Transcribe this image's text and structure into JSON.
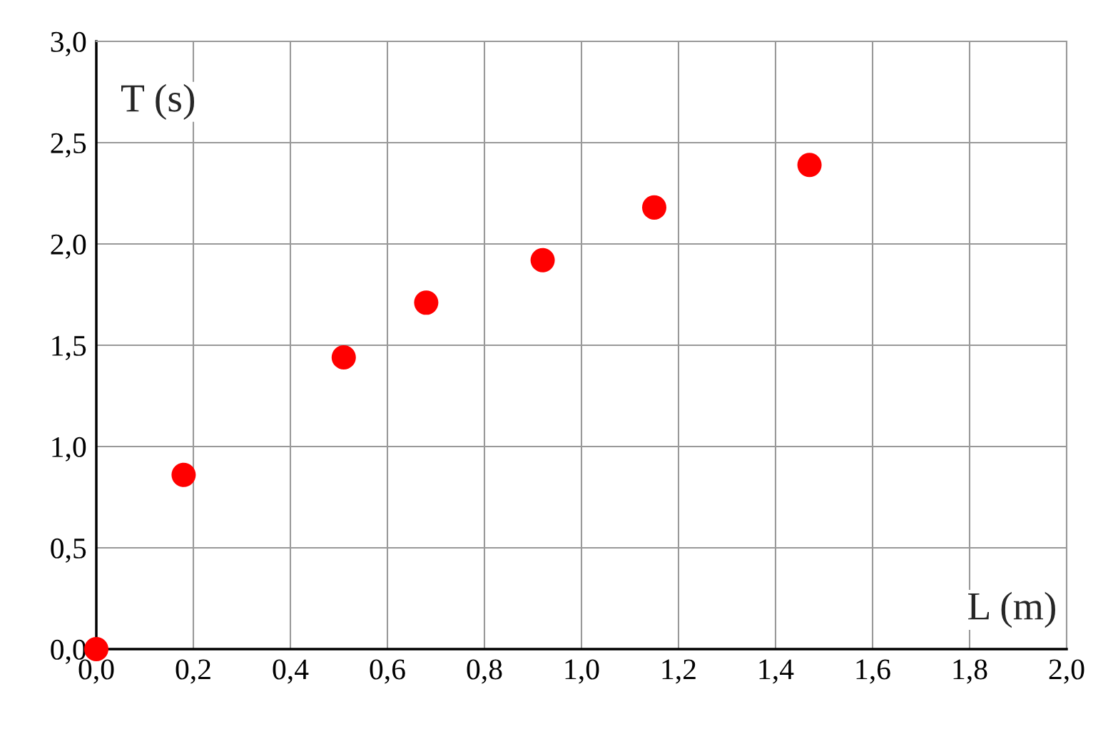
{
  "chart_data": {
    "type": "scatter",
    "xlabel": "L (m)",
    "ylabel": "T (s)",
    "x": [
      0.0,
      0.18,
      0.51,
      0.68,
      0.92,
      1.15,
      1.47
    ],
    "series": [
      {
        "color": "#ff0000",
        "values": [
          0.0,
          0.86,
          1.44,
          1.71,
          1.92,
          2.18,
          2.39
        ]
      }
    ],
    "xlim": [
      0.0,
      2.0
    ],
    "ylim": [
      0.0,
      3.0
    ],
    "xticks": [
      {
        "value": 0.0,
        "label": "0,0"
      },
      {
        "value": 0.2,
        "label": "0,2"
      },
      {
        "value": 0.4,
        "label": "0,4"
      },
      {
        "value": 0.6,
        "label": "0,6"
      },
      {
        "value": 0.8,
        "label": "0,8"
      },
      {
        "value": 1.0,
        "label": "1,0"
      },
      {
        "value": 1.2,
        "label": "1,2"
      },
      {
        "value": 1.4,
        "label": "1,4"
      },
      {
        "value": 1.6,
        "label": "1,6"
      },
      {
        "value": 1.8,
        "label": "1,8"
      },
      {
        "value": 2.0,
        "label": "2,0"
      }
    ],
    "yticks": [
      {
        "value": 0.0,
        "label": "0,0"
      },
      {
        "value": 0.5,
        "label": "0,5"
      },
      {
        "value": 1.0,
        "label": "1,0"
      },
      {
        "value": 1.5,
        "label": "1,5"
      },
      {
        "value": 2.0,
        "label": "2,0"
      },
      {
        "value": 2.5,
        "label": "2,5"
      },
      {
        "value": 3.0,
        "label": "3,0"
      }
    ],
    "grid": true,
    "marker": "circle"
  }
}
